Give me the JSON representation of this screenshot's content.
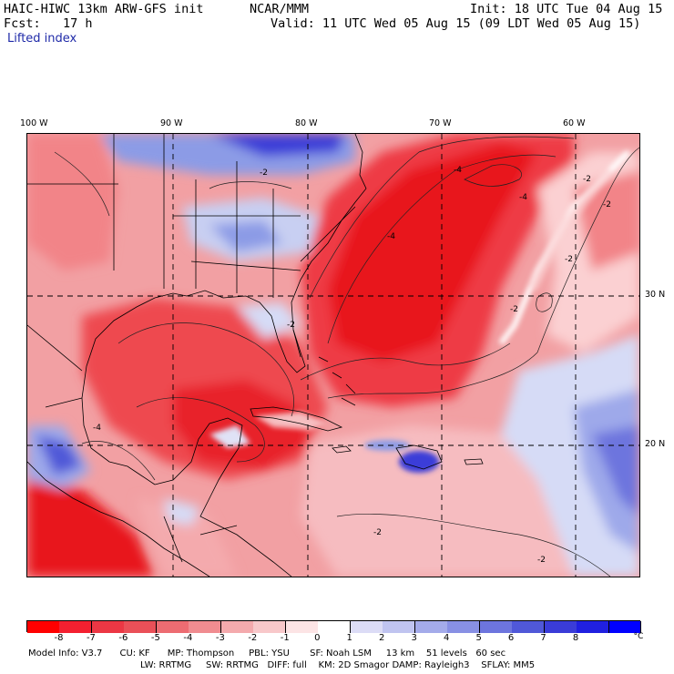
{
  "header": {
    "model_title": "HAIC-HIWC 13km ARW-GFS init",
    "org": "NCAR/MMM",
    "init": "Init: 18 UTC Tue 04 Aug 15",
    "forecast": "Fcst:   17 h",
    "valid": "Valid: 11 UTC Wed 05 Aug 15 (09 LDT Wed 05 Aug 15)",
    "field_name": "Lifted index"
  },
  "map": {
    "longitude_labels": [
      "100 W",
      "90 W",
      "80 W",
      "70 W",
      "60 W"
    ],
    "latitude_labels": [
      "30 N",
      "20 N"
    ],
    "contour_labels": [
      "-2",
      "-4"
    ],
    "colors": {
      "strong_negative": "#e8141e",
      "mid_negative": "#f28488",
      "weak_negative": "#fcd2d4",
      "neutral": "#ffffff",
      "weak_positive": "#d6dbf6",
      "mid_positive": "#8c9be6",
      "strong_positive": "#1e1ed8"
    }
  },
  "colorbar": {
    "unit": "°C",
    "tick_labels": [
      "-8",
      "-7",
      "-6",
      "-5",
      "-4",
      "-3",
      "-2",
      "-1",
      "0",
      "1",
      "2",
      "3",
      "4",
      "5",
      "6",
      "7",
      "8"
    ],
    "colors": [
      "#ff0000",
      "#f42030",
      "#ec3744",
      "#ea5058",
      "#ed6c72",
      "#f08c90",
      "#f4aaad",
      "#f8c8ca",
      "#fce4e5",
      "#ffffff",
      "#dcdcf6",
      "#c0c4f0",
      "#a4abea",
      "#8890e4",
      "#6d75de",
      "#5058d8",
      "#3a3cd8",
      "#2020e0",
      "#0000ff"
    ]
  },
  "model_info": {
    "line1": "Model Info: V3.7      CU: KF      MP: Thompson     PBL: YSU       SF: Noah LSM     13 km    51 levels   60 sec",
    "line2": "LW: RRTMG     SW: RRTMG   DIFF: full    KM: 2D Smagor DAMP: Rayleigh3    SFLAY: MM5"
  }
}
